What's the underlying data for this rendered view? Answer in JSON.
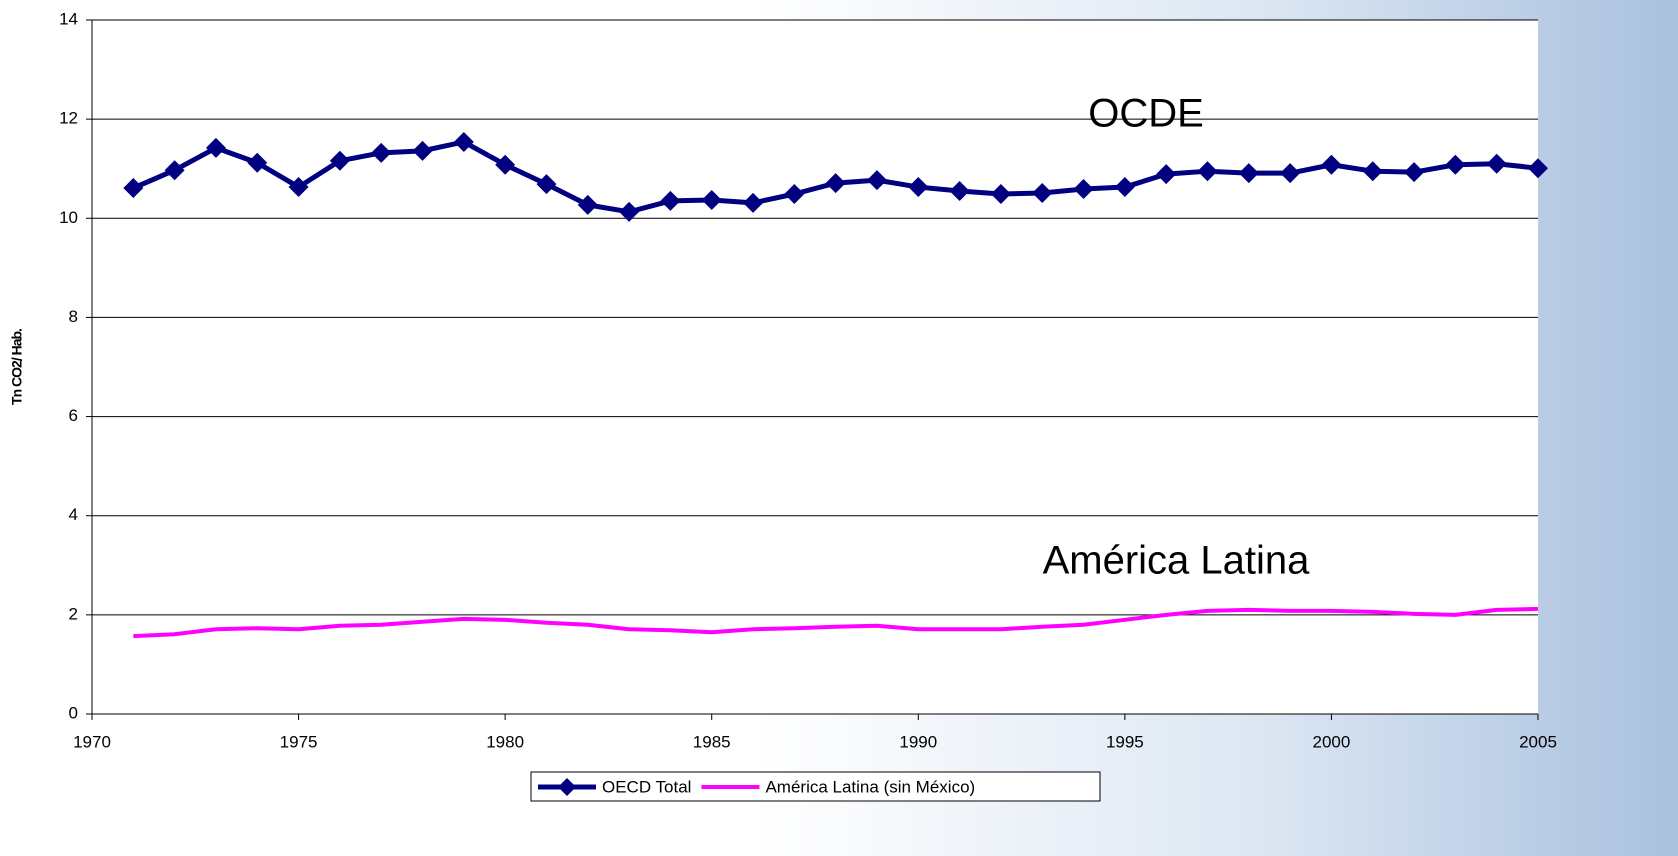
{
  "chart_data": {
    "type": "line",
    "y_label": "Tn CO2/ Hab.",
    "annotations": [
      "OCDE",
      "América Latina"
    ],
    "x": [
      1971,
      1972,
      1973,
      1974,
      1975,
      1976,
      1977,
      1978,
      1979,
      1980,
      1981,
      1982,
      1983,
      1984,
      1985,
      1986,
      1987,
      1988,
      1989,
      1990,
      1991,
      1992,
      1993,
      1994,
      1995,
      1996,
      1997,
      1998,
      1999,
      2000,
      2001,
      2002,
      2003,
      2004,
      2005
    ],
    "series": [
      {
        "name": "OECD Total",
        "color": "#000080",
        "marker": "diamond",
        "values": [
          10.61,
          10.97,
          11.42,
          11.12,
          10.63,
          11.16,
          11.32,
          11.36,
          11.54,
          11.08,
          10.69,
          10.27,
          10.13,
          10.35,
          10.37,
          10.31,
          10.49,
          10.71,
          10.77,
          10.63,
          10.55,
          10.49,
          10.51,
          10.59,
          10.63,
          10.89,
          10.95,
          10.91,
          10.91,
          11.08,
          10.95,
          10.93,
          11.08,
          11.1,
          11.01
        ]
      },
      {
        "name": "América Latina (sin México)",
        "color": "#ff00ff",
        "values": [
          1.57,
          1.61,
          1.71,
          1.73,
          1.71,
          1.78,
          1.8,
          1.86,
          1.92,
          1.9,
          1.84,
          1.8,
          1.71,
          1.69,
          1.65,
          1.71,
          1.73,
          1.76,
          1.78,
          1.71,
          1.71,
          1.71,
          1.76,
          1.8,
          1.9,
          2.0,
          2.08,
          2.1,
          2.08,
          2.08,
          2.06,
          2.02,
          2.0,
          2.1,
          2.12
        ]
      }
    ],
    "xlim": [
      1970,
      2005
    ],
    "xticks": [
      1970,
      1975,
      1980,
      1985,
      1990,
      1995,
      2000,
      2005
    ],
    "ylim": [
      0,
      14
    ],
    "yticks": [
      0,
      2,
      4,
      6,
      8,
      10,
      12,
      14
    ],
    "grid": true,
    "legend": "bottom"
  }
}
